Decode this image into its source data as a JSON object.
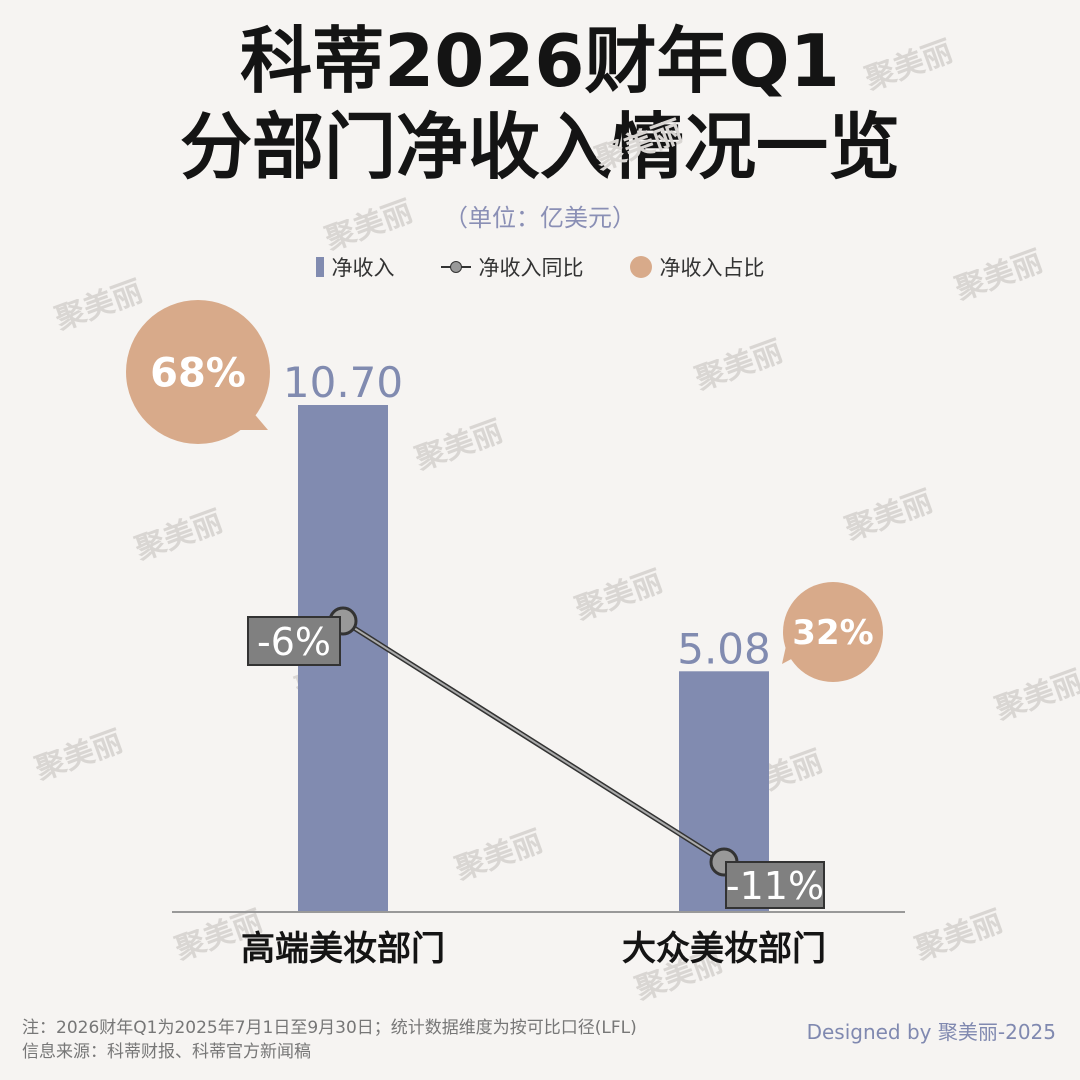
{
  "title_line1": "科蒂2026财年Q1",
  "title_line2": "分部门净收入情况一览",
  "unit": "（单位：亿美元）",
  "legend": [
    {
      "label": "净收入",
      "kind": "bar"
    },
    {
      "label": "净收入同比",
      "kind": "line"
    },
    {
      "label": "净收入占比",
      "kind": "dot"
    }
  ],
  "watermark": "聚美丽",
  "footnote_line1": "注：2026财年Q1为2025年7月1日至9月30日；统计数据维度为按可比口径(LFL)",
  "footnote_line2": "信息来源：科蒂财报、科蒂官方新闻稿",
  "credit": "Designed by 聚美丽-2025",
  "colors": {
    "bar": "#818bb0",
    "bubble": "#d8aa8a",
    "label_box": "#808080",
    "line": "#333333"
  },
  "chart_data": {
    "type": "bar",
    "categories": [
      "高端美妆部门",
      "大众美妆部门"
    ],
    "series": [
      {
        "name": "净收入",
        "values": [
          10.7,
          5.08
        ],
        "value_labels": [
          "10.70",
          "5.08"
        ]
      },
      {
        "name": "净收入同比",
        "values": [
          -6,
          -11
        ],
        "value_labels": [
          "-6%",
          "-11%"
        ],
        "kind": "line"
      },
      {
        "name": "净收入占比",
        "values": [
          68,
          32
        ],
        "value_labels": [
          "68%",
          "32%"
        ],
        "kind": "bubble"
      }
    ],
    "unit": "亿美元",
    "ylim": [
      0,
      12
    ],
    "grid": false,
    "legend_position": "top-center"
  }
}
